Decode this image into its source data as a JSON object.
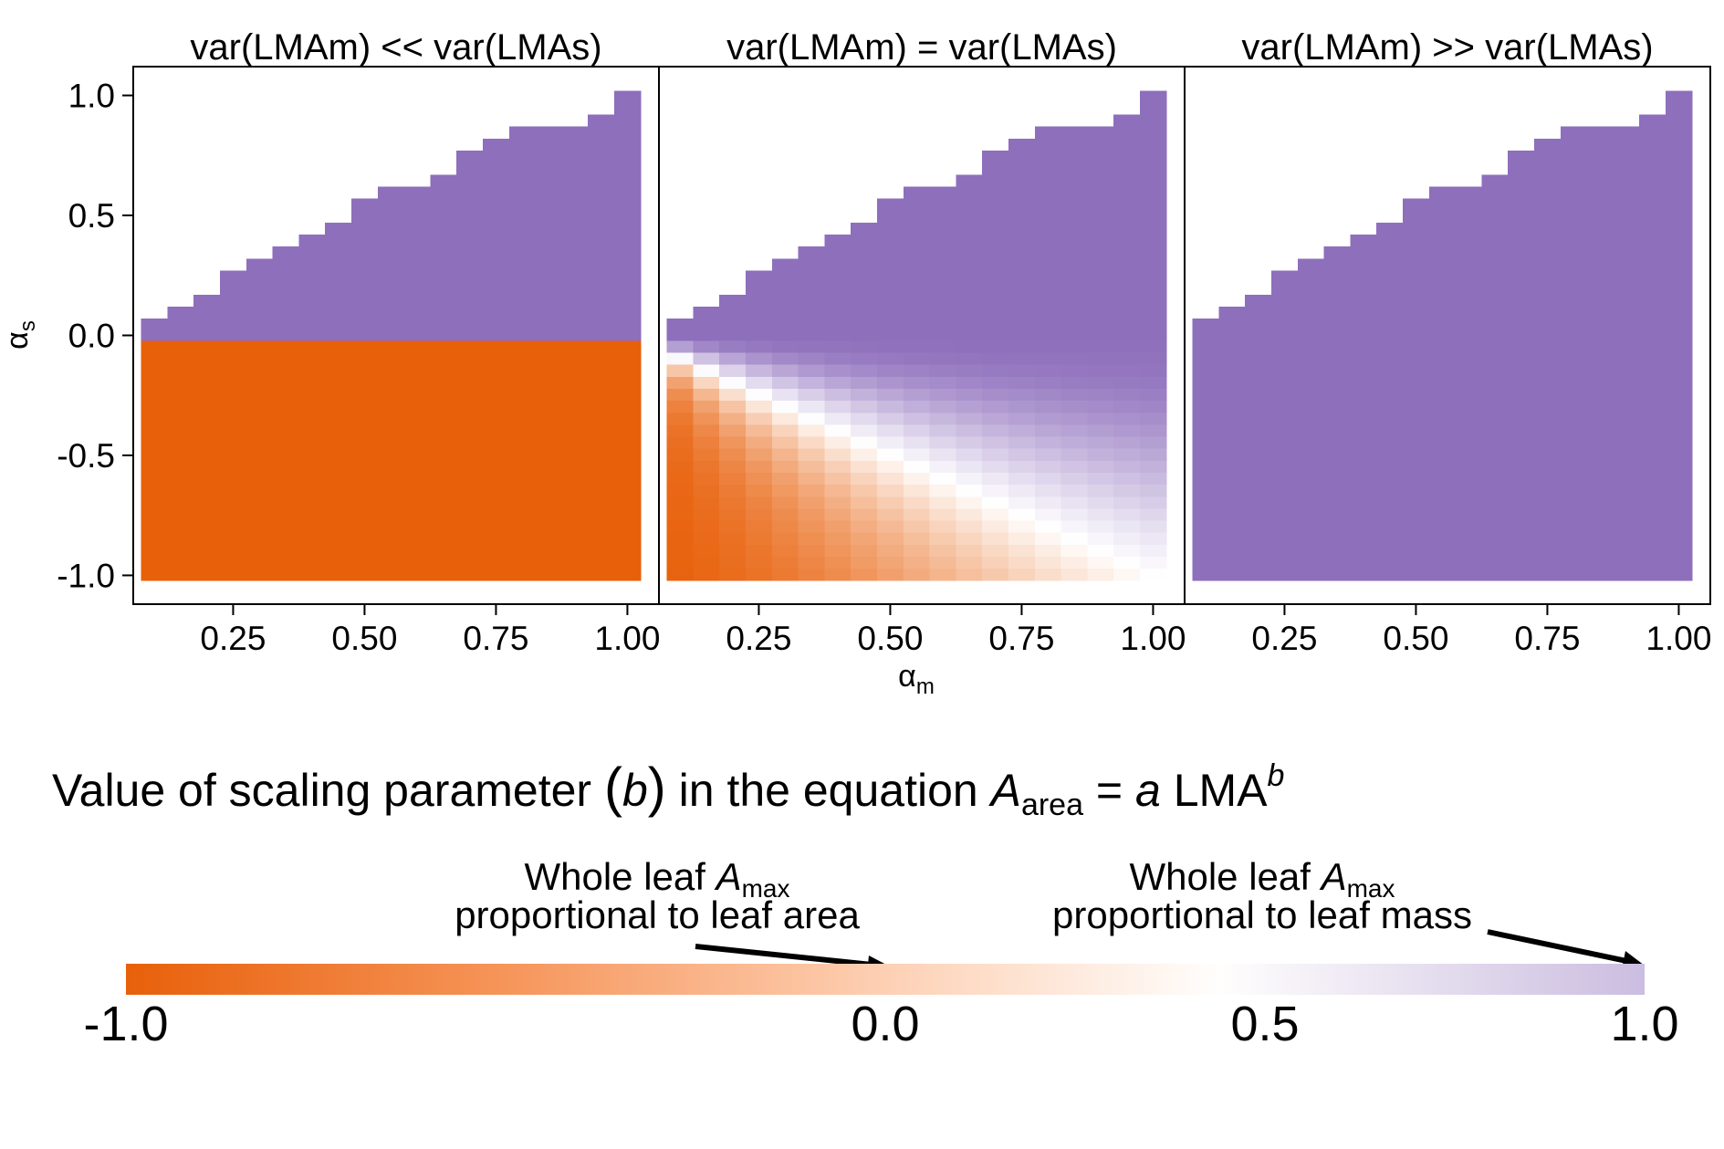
{
  "chart_data": {
    "type": "heatmap",
    "panels": [
      {
        "title": "var(LMAm) << var(LMAs)",
        "wm": 0.0,
        "ws": 1.0
      },
      {
        "title": "var(LMAm) = var(LMAs)",
        "wm": 1.0,
        "ws": 1.0
      },
      {
        "title": "var(LMAm) >> var(LMAs)",
        "wm": 1.0,
        "ws": 0.0
      }
    ],
    "xlabel": "α",
    "xlabel_sub": "m",
    "ylabel": "α",
    "ylabel_sub": "s",
    "xlim": [
      0.06,
      1.06
    ],
    "ylim": [
      -1.12,
      1.12
    ],
    "xticks": [
      0.25,
      0.5,
      0.75,
      1.0
    ],
    "xtick_labels": [
      "0.25",
      "0.50",
      "0.75",
      "1.00"
    ],
    "yticks": [
      1.0,
      0.5,
      0.0,
      -0.5,
      -1.0
    ],
    "ytick_labels": [
      "1.0",
      "0.5",
      "0.0",
      "-0.5",
      "-1.0"
    ],
    "grid": false,
    "alpha_m_values": [
      0.1,
      0.15,
      0.2,
      0.25,
      0.3,
      0.35,
      0.4,
      0.45,
      0.5,
      0.55,
      0.6,
      0.65,
      0.7,
      0.75,
      0.8,
      0.85,
      0.9,
      0.95,
      1.0
    ],
    "alpha_s_max": [
      0.07,
      0.12,
      0.17,
      0.27,
      0.32,
      0.37,
      0.42,
      0.47,
      0.57,
      0.62,
      0.62,
      0.67,
      0.77,
      0.82,
      0.87,
      0.87,
      0.87,
      0.92,
      1.02
    ],
    "alpha_s_min": -1.02,
    "alpha_s_step": 0.05,
    "colorbar": {
      "title_parts": {
        "prefix": "Value of scaling parameter ",
        "open": "(",
        "b": "b",
        "close": ")",
        "middle": " in the equation ",
        "A": "A",
        "area": "area",
        "eq": " = ",
        "a": "a",
        "lma": " LMA",
        "exp": "b"
      },
      "range": [
        -1.0,
        1.0
      ],
      "ticks": [
        -1.0,
        0.0,
        0.5,
        1.0
      ],
      "tick_labels": [
        "-1.0",
        "0.0",
        "0.5",
        "1.0"
      ],
      "low_color": "#e8600a",
      "mid_color": "#ffffff",
      "high_color": "#8e6fbc"
    },
    "annotations": [
      {
        "line1_pre": "Whole leaf ",
        "A": "A",
        "sub": "max",
        "line2": "proportional to leaf area",
        "target": 0.0
      },
      {
        "line1_pre": "Whole leaf ",
        "A": "A",
        "sub": "max",
        "line2": "proportional to leaf mass",
        "target": 1.0
      }
    ]
  }
}
